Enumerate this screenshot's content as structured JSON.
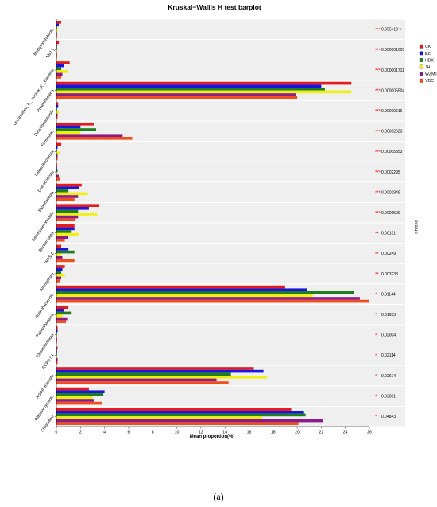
{
  "figure": {
    "panel_label": "(a)"
  },
  "chart_data": {
    "type": "bar",
    "orientation": "horizontal",
    "title": "Kruskal−Wallis H test barplot",
    "xlabel": "Mean proportion(%)",
    "right_axis_label": "pvalue",
    "xlim": [
      0,
      26
    ],
    "xticks": [
      0,
      2,
      4,
      6,
      8,
      10,
      12,
      14,
      16,
      18,
      20,
      22,
      24,
      26
    ],
    "grid": false,
    "legend_position": "top-right",
    "categories": [
      "Methylomirabilota",
      "NB1-j",
      "unclassified_k__norank_d__Bacteria",
      "Proteobacteria",
      "Desulfobacterota",
      "Firmicutes",
      "Latescibacterota",
      "Deinococcota",
      "Myxococcota",
      "Gemmatimonadota",
      "Bacteroidota",
      "WPS-2",
      "Nitrospirota",
      "Actinobacteriota",
      "Patescibacteria",
      "Elusimicrobiota",
      "RCP2-54",
      "Acidobacteriota",
      "Planctomycetota",
      "Chloroflexi"
    ],
    "significance": [
      "***",
      "***",
      "***",
      "***",
      "***",
      "***",
      "***",
      "***",
      "***",
      "***",
      "**",
      "**",
      "**",
      "*",
      "*",
      "*",
      "*",
      "*",
      "*",
      "*"
    ],
    "pvalues": [
      "9.055×10⁻⁶",
      "0.000001005",
      "0.000001711",
      "0.000005504",
      "0.00000616",
      "0.00002623",
      "0.00005353",
      "0.0002295",
      "0.0002949",
      "0.0006509",
      "0.00131",
      "0.00249",
      "0.003233",
      "0.01144",
      "0.01933",
      "0.02004",
      "0.02114",
      "0.02674",
      "0.03001",
      "0.04843"
    ],
    "series": [
      {
        "name": "CK",
        "color": "#e41a1c",
        "values": [
          0.4,
          0.2,
          1.1,
          24.5,
          0.15,
          3.1,
          0.4,
          0.05,
          2.1,
          3.5,
          1.5,
          0.4,
          0.7,
          19.0,
          1.0,
          0.1,
          0.1,
          16.4,
          2.7,
          19.5
        ]
      },
      {
        "name": "EZ",
        "color": "#1a14e0",
        "values": [
          0.2,
          0.05,
          0.6,
          22.0,
          0.15,
          2.0,
          0.1,
          0.05,
          1.9,
          2.7,
          1.5,
          1.0,
          0.5,
          20.8,
          0.6,
          0.1,
          0.05,
          17.2,
          4.0,
          20.5
        ]
      },
      {
        "name": "HDK",
        "color": "#1e7d1e",
        "values": [
          0.05,
          0.05,
          0.4,
          22.3,
          0.05,
          3.3,
          0.05,
          0.1,
          1.0,
          1.8,
          1.2,
          1.5,
          0.4,
          24.7,
          1.2,
          0.05,
          0.05,
          14.5,
          3.9,
          20.7
        ]
      },
      {
        "name": "JH",
        "color": "#f0f010",
        "values": [
          0.1,
          0.05,
          1.0,
          24.5,
          0.2,
          2.0,
          0.3,
          0.05,
          2.6,
          3.4,
          1.9,
          0.4,
          0.7,
          21.3,
          0.5,
          0.05,
          0.05,
          17.5,
          3.0,
          17.1
        ]
      },
      {
        "name": "WZMT",
        "color": "#8b1a8b",
        "values": [
          0.05,
          0.05,
          0.5,
          19.9,
          0.1,
          5.5,
          0.1,
          0.2,
          1.8,
          1.8,
          1.0,
          0.5,
          0.4,
          25.2,
          0.9,
          0.05,
          0.1,
          13.3,
          3.1,
          22.1
        ]
      },
      {
        "name": "YDC",
        "color": "#f24d1c",
        "values": [
          0.05,
          0.05,
          0.4,
          20.0,
          0.1,
          6.3,
          0.1,
          0.3,
          1.5,
          1.6,
          0.7,
          1.5,
          0.3,
          26.0,
          0.8,
          0.05,
          0.1,
          14.3,
          3.8,
          20.1
        ]
      }
    ]
  }
}
